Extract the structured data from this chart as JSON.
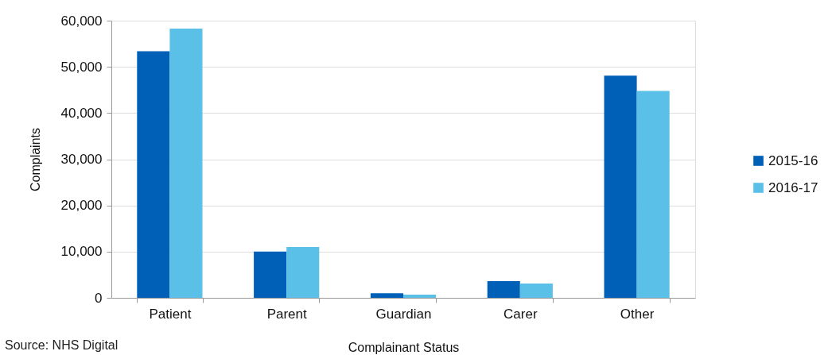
{
  "chart_data": {
    "type": "bar",
    "xlabel": "Complainant  Status",
    "ylabel": "Complaints",
    "categories": [
      "Patient",
      "Parent",
      "Guardian",
      "Carer",
      "Other"
    ],
    "series": [
      {
        "name": "2015-16",
        "color": "#0060b8",
        "values": [
          53400,
          10000,
          1000,
          3600,
          48100
        ]
      },
      {
        "name": "2016-17",
        "color": "#5bc0e8",
        "values": [
          58300,
          11000,
          700,
          3100,
          44800
        ]
      }
    ],
    "ylim": [
      0,
      60000
    ],
    "yticks": [
      {
        "value": 0,
        "label": "0"
      },
      {
        "value": 10000,
        "label": "10,000"
      },
      {
        "value": 20000,
        "label": "20,000"
      },
      {
        "value": 30000,
        "label": "30,000"
      },
      {
        "value": 40000,
        "label": "40,000"
      },
      {
        "value": 50000,
        "label": "50,000"
      },
      {
        "value": 60000,
        "label": "60,000"
      }
    ],
    "grid": "y",
    "legend": "right",
    "annotations": [
      "Source: NHS  Digital"
    ]
  }
}
